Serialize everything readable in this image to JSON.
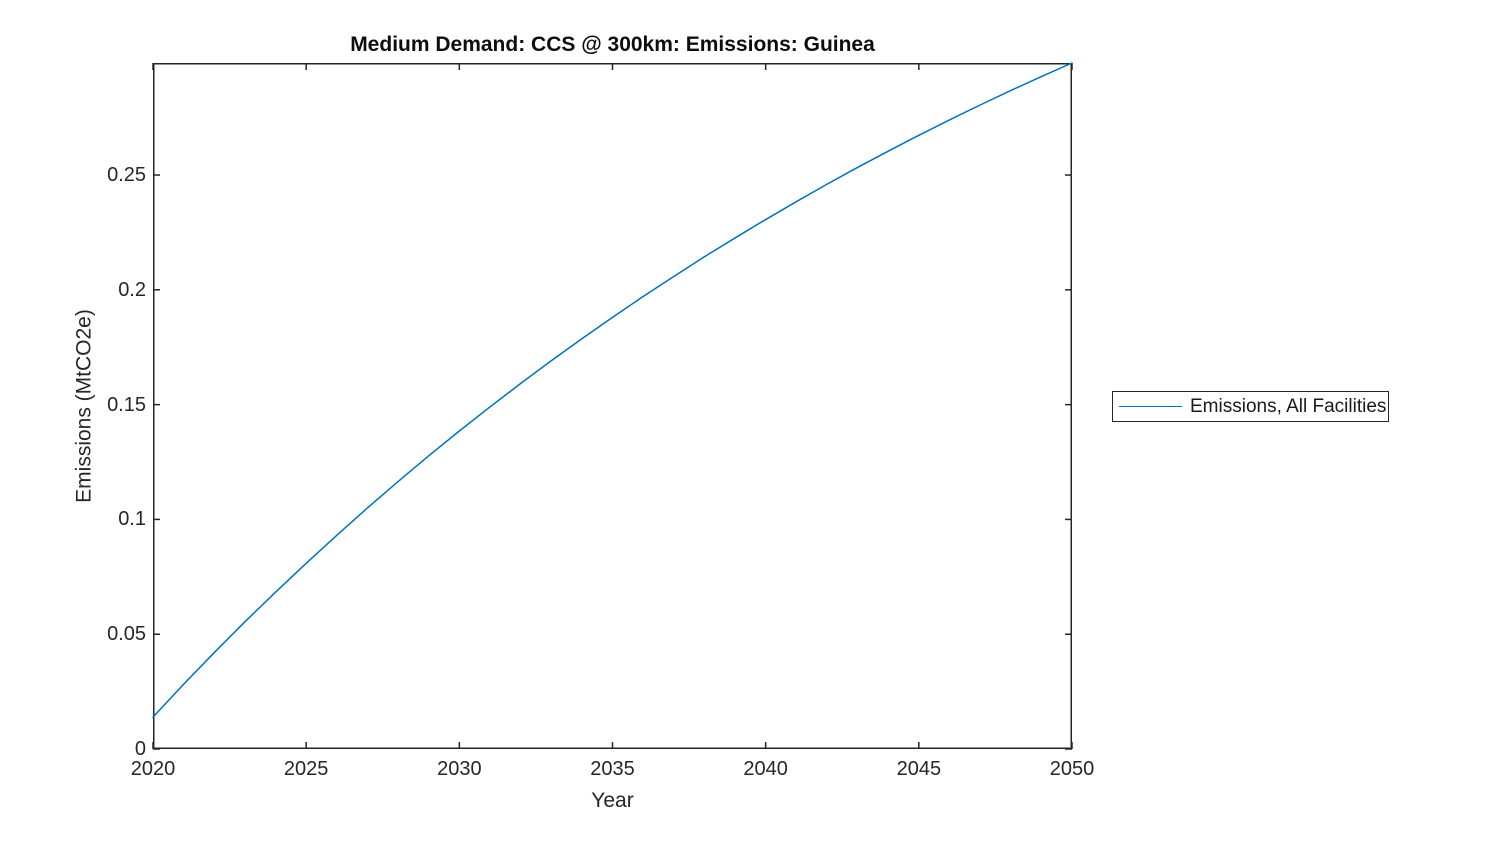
{
  "figure": {
    "background": "#ffffff",
    "axis_color": "#262626",
    "text_color": "#262626"
  },
  "chart_data": {
    "type": "line",
    "title": "Medium Demand: CCS @ 300km: Emissions: Guinea",
    "xlabel": "Year",
    "ylabel": "Emissions (MtCO2e)",
    "xlim": [
      2020,
      2050
    ],
    "ylim": [
      0,
      0.2988
    ],
    "x_ticks": [
      2020,
      2025,
      2030,
      2035,
      2040,
      2045,
      2050
    ],
    "x_tick_labels": [
      "2020",
      "2025",
      "2030",
      "2035",
      "2040",
      "2045",
      "2050"
    ],
    "y_ticks": [
      0,
      0.05,
      0.1,
      0.15,
      0.2,
      0.25
    ],
    "y_tick_labels": [
      "0",
      "0.05",
      "0.1",
      "0.15",
      "0.2",
      "0.25"
    ],
    "grid": false,
    "box": true,
    "ticks_mirrored": true,
    "tick_direction": "in",
    "x": [
      2020,
      2021,
      2022,
      2023,
      2024,
      2025,
      2026,
      2027,
      2028,
      2029,
      2030,
      2031,
      2032,
      2033,
      2034,
      2035,
      2036,
      2037,
      2038,
      2039,
      2040,
      2041,
      2042,
      2043,
      2044,
      2045,
      2046,
      2047,
      2048,
      2049,
      2050
    ],
    "series": [
      {
        "name": "Emissions, All Facilities",
        "color": "#0072BD",
        "values": [
          0.0139,
          0.0282,
          0.042,
          0.0554,
          0.0683,
          0.0809,
          0.0931,
          0.105,
          0.1165,
          0.1277,
          0.1385,
          0.149,
          0.1592,
          0.1691,
          0.1787,
          0.188,
          0.1971,
          0.2058,
          0.2144,
          0.2226,
          0.2306,
          0.2384,
          0.246,
          0.2533,
          0.2604,
          0.2673,
          0.274,
          0.2805,
          0.2868,
          0.2929,
          0.2988
        ]
      }
    ],
    "legend": {
      "position": "right-outside",
      "entries": [
        {
          "label": "Emissions, All Facilities",
          "color": "#0072BD"
        }
      ]
    }
  }
}
